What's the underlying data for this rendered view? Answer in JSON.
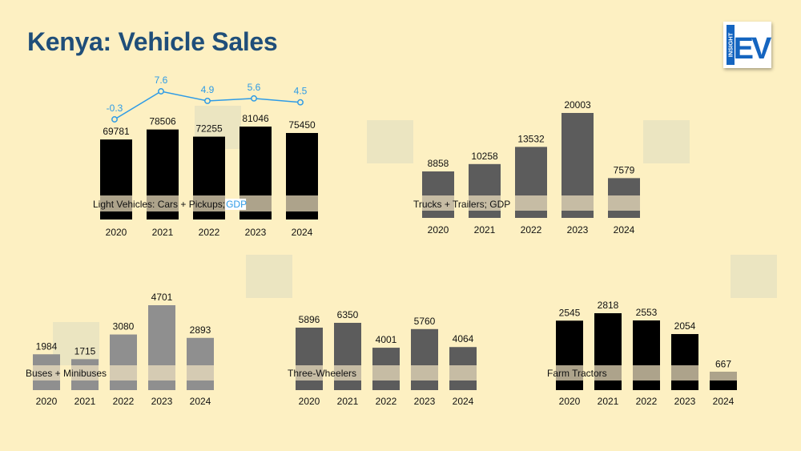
{
  "header": {
    "title": "Kenya: Vehicle Sales"
  },
  "logo": {
    "side_text": "INSIGHT",
    "main_text": "EV",
    "color": "#1565c0"
  },
  "colors": {
    "background": "#fdf0c2",
    "gdp_line": "#2e9be6",
    "band": "#f0e2c0"
  },
  "chart_data": [
    {
      "type": "bar",
      "label": "Light Vehicles: Cars + Pickups; ",
      "label_highlight": "GDP",
      "categories": [
        "2020",
        "2021",
        "2022",
        "2023",
        "2024"
      ],
      "values": [
        69781,
        78506,
        72255,
        81046,
        75450
      ],
      "bar_color": "#000000",
      "line_series": {
        "type": "line",
        "values": [
          -0.3,
          7.6,
          4.9,
          5.6,
          4.5
        ],
        "labels": [
          "-0.3",
          "7.6",
          "4.9",
          "5.6",
          "4.5"
        ]
      }
    },
    {
      "type": "bar",
      "label": "Trucks + Trailers; GDP",
      "categories": [
        "2020",
        "2021",
        "2022",
        "2023",
        "2024"
      ],
      "values": [
        8858,
        10258,
        13532,
        20003,
        7579
      ],
      "bar_color": "#5c5c5c"
    },
    {
      "type": "bar",
      "label": "Buses + Minibuses",
      "categories": [
        "2020",
        "2021",
        "2022",
        "2023",
        "2024"
      ],
      "values": [
        1984,
        1715,
        3080,
        4701,
        2893
      ],
      "bar_color": "#8f8f8f"
    },
    {
      "type": "bar",
      "label": "Three-Wheelers",
      "categories": [
        "2020",
        "2021",
        "2022",
        "2023",
        "2024"
      ],
      "values": [
        5896,
        6350,
        4001,
        5760,
        4064
      ],
      "bar_color": "#5c5c5c"
    },
    {
      "type": "bar",
      "label": "Farm Tractors",
      "categories": [
        "2020",
        "2021",
        "2022",
        "2023",
        "2024"
      ],
      "values": [
        2545,
        2818,
        2553,
        2054,
        667
      ],
      "bar_color": "#000000"
    }
  ]
}
